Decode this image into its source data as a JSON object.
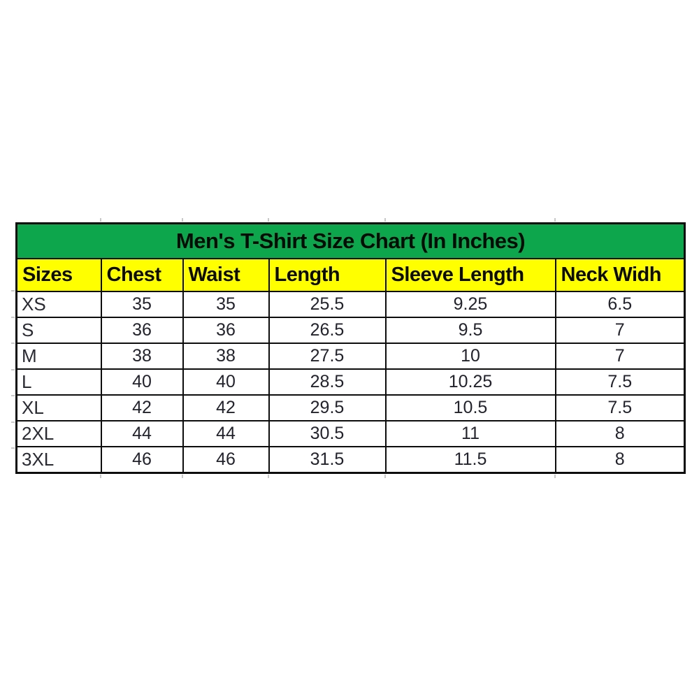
{
  "table": {
    "title": "Men's T-Shirt Size Chart (In Inches)",
    "title_bg_color": "#0ea64c",
    "header_bg_color": "#ffff00",
    "border_color": "#0d0d0d",
    "columns": [
      "Sizes",
      "Chest",
      "Waist",
      "Length",
      "Sleeve Length",
      "Neck Widh"
    ],
    "rows": [
      {
        "size": "XS",
        "chest": "35",
        "waist": "35",
        "length": "25.5",
        "sleeve_length": "9.25",
        "neck_width": "6.5"
      },
      {
        "size": "S",
        "chest": "36",
        "waist": "36",
        "length": "26.5",
        "sleeve_length": "9.5",
        "neck_width": "7"
      },
      {
        "size": "M",
        "chest": "38",
        "waist": "38",
        "length": "27.5",
        "sleeve_length": "10",
        "neck_width": "7"
      },
      {
        "size": "L",
        "chest": "40",
        "waist": "40",
        "length": "28.5",
        "sleeve_length": "10.25",
        "neck_width": "7.5"
      },
      {
        "size": "XL",
        "chest": "42",
        "waist": "42",
        "length": "29.5",
        "sleeve_length": "10.5",
        "neck_width": "7.5"
      },
      {
        "size": "2XL",
        "chest": "44",
        "waist": "44",
        "length": "30.5",
        "sleeve_length": "11",
        "neck_width": "8"
      },
      {
        "size": "3XL",
        "chest": "46",
        "waist": "46",
        "length": "31.5",
        "sleeve_length": "11.5",
        "neck_width": "8"
      }
    ]
  },
  "chart_data": {
    "type": "table",
    "title": "Men's T-Shirt Size Chart (In Inches)",
    "columns": [
      "Sizes",
      "Chest",
      "Waist",
      "Length",
      "Sleeve Length",
      "Neck Widh"
    ],
    "rows": [
      [
        "XS",
        35,
        35,
        25.5,
        9.25,
        6.5
      ],
      [
        "S",
        36,
        36,
        26.5,
        9.5,
        7
      ],
      [
        "M",
        38,
        38,
        27.5,
        10,
        7
      ],
      [
        "L",
        40,
        40,
        28.5,
        10.25,
        7.5
      ],
      [
        "XL",
        42,
        42,
        29.5,
        10.5,
        7.5
      ],
      [
        "2XL",
        44,
        44,
        30.5,
        11,
        8
      ],
      [
        "3XL",
        46,
        46,
        31.5,
        11.5,
        8
      ]
    ],
    "layout_hints": {
      "title_band_color": "#0ea64c",
      "header_band_color": "#ffff00",
      "units": "inches"
    }
  }
}
